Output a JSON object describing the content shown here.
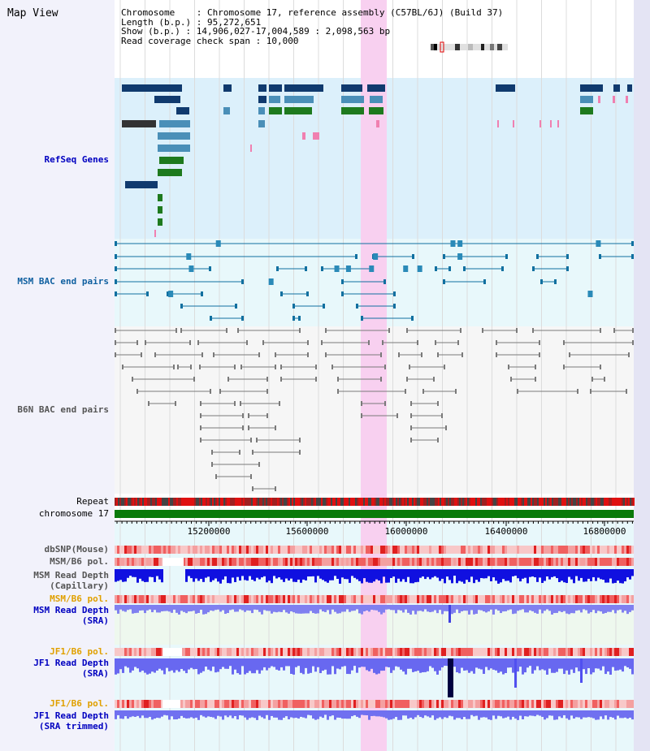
{
  "title": "Map View",
  "info": {
    "chromosome": "Chromosome    : Chromosome 17, reference assembly (C57BL/6J) (Build 37)",
    "length": "Length (b.p.) : 95,272,651",
    "show": "Show (b.p.) : 14,906,027-17,004,589 : 2,098,563 bp",
    "coverage": "Read coverage check span : 10,000"
  },
  "tracks": {
    "refseq": "RefSeq Genes",
    "msm_bac": "MSM BAC end pairs",
    "b6n_bac": "B6N BAC end pairs",
    "repeat": "Repeat",
    "chromosome": "chromosome 17",
    "dbsnp": "dbSNP(Mouse)",
    "msm_b6_pol": "MSM/B6 pol.",
    "msm_depth_cap_1": "MSM Read Depth",
    "msm_depth_cap_2": "(Capillary)",
    "msm_b6_pol_2": "MSM/B6 pol.",
    "msm_depth_sra_1": "MSM Read Depth",
    "msm_depth_sra_2": "(SRA)",
    "jf1_b6_pol": "JF1/B6 pol.",
    "jf1_depth_sra_1": "JF1 Read Depth",
    "jf1_depth_sra_2": "(SRA)",
    "jf1_b6_pol_2": "JF1/B6 pol.",
    "jf1_depth_trim_1": "JF1 Read Depth",
    "jf1_depth_trim_2": "(SRA trimmed)"
  },
  "axis": {
    "ticks": [
      "15200000",
      "15600000",
      "16000000",
      "16400000",
      "16800000"
    ]
  },
  "colors": {
    "refseq_bg": "#dcf0fb",
    "bac_bg": "#e8f8fb",
    "highlight": "#f8d0f0",
    "gene_dark": "#103a6e",
    "gene_mid": "#4a8fb8",
    "gene_green": "#1e7a1e",
    "chrom_green": "#0a7a0a",
    "msm_label": "#1060a0",
    "b6n_label": "#555555",
    "blue_label": "#0000c0",
    "orange_label": "#e0a000",
    "depth_blue": "#1010e0",
    "depth_light": "#7070f0"
  }
}
